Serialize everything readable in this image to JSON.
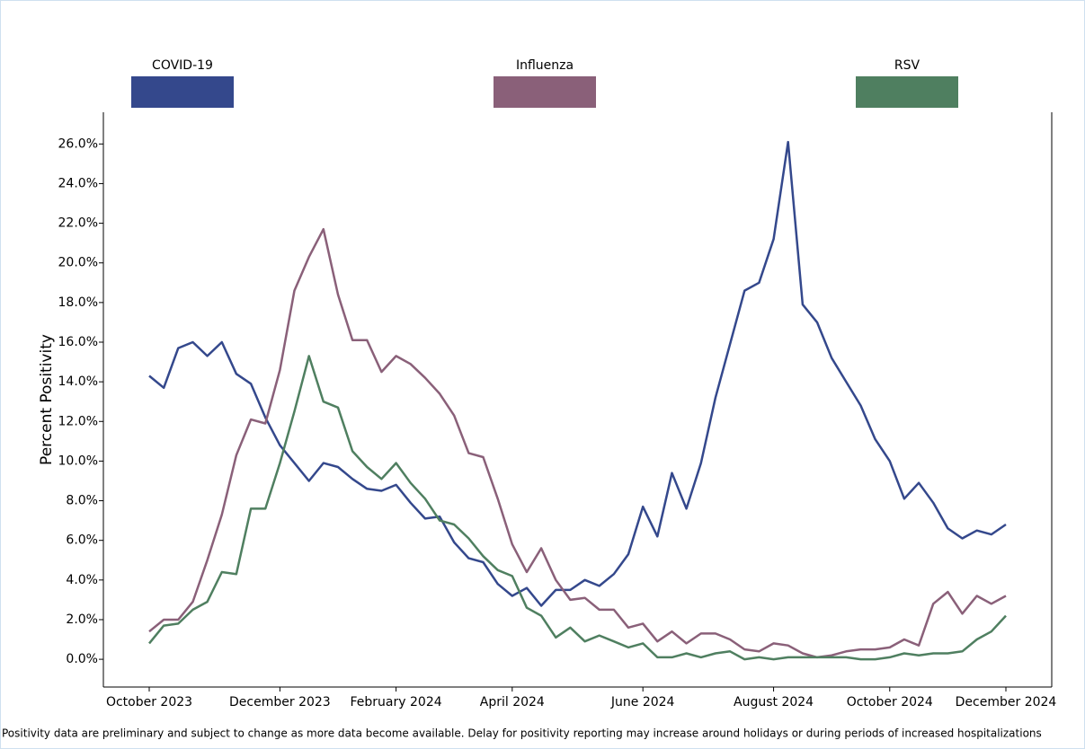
{
  "chart_data": {
    "type": "line",
    "y_label": "Percent Positivity",
    "footnote": "Positivity data are preliminary and subject to change as more data become available. Delay for positivity reporting may increase around holidays or during periods of increased hospitalizations",
    "legend": "top",
    "categories": [
      "October 2023",
      null,
      null,
      null,
      null,
      null,
      null,
      null,
      null,
      "December 2023",
      null,
      null,
      null,
      null,
      null,
      null,
      null,
      "February 2024",
      null,
      null,
      null,
      null,
      null,
      null,
      null,
      "April 2024",
      null,
      null,
      null,
      null,
      null,
      null,
      null,
      null,
      "June 2024",
      null,
      null,
      null,
      null,
      null,
      null,
      null,
      null,
      "August 2024",
      null,
      null,
      null,
      null,
      null,
      null,
      null,
      "October 2024",
      null,
      null,
      null,
      null,
      null,
      null,
      null,
      "December 2024"
    ],
    "series": [
      {
        "name": "COVID-19",
        "color": "#34488c",
        "values": [
          14.3,
          13.7,
          15.7,
          16.0,
          15.3,
          16.0,
          14.4,
          13.9,
          12.2,
          10.8,
          9.9,
          9.0,
          9.9,
          9.7,
          9.1,
          8.6,
          8.5,
          8.8,
          7.9,
          7.1,
          7.2,
          5.9,
          5.1,
          4.9,
          3.8,
          3.2,
          3.6,
          2.7,
          3.5,
          3.5,
          4.0,
          3.7,
          4.3,
          5.3,
          7.7,
          6.2,
          9.4,
          7.6,
          9.9,
          13.2,
          15.9,
          18.6,
          19.0,
          21.2,
          26.1,
          17.9,
          17.0,
          15.2,
          14.0,
          12.8,
          11.1,
          10.0,
          8.1,
          8.9,
          7.9,
          6.6,
          6.1,
          6.5,
          6.3,
          6.8
        ]
      },
      {
        "name": "Influenza",
        "color": "#8a6079",
        "values": [
          1.4,
          2.0,
          2.0,
          2.9,
          5.0,
          7.3,
          10.3,
          12.1,
          11.9,
          14.6,
          18.6,
          20.3,
          21.7,
          18.4,
          16.1,
          16.1,
          14.5,
          15.3,
          14.9,
          14.2,
          13.4,
          12.3,
          10.4,
          10.2,
          8.1,
          5.8,
          4.4,
          5.6,
          4.0,
          3.0,
          3.1,
          2.5,
          2.5,
          1.6,
          1.8,
          0.9,
          1.4,
          0.8,
          1.3,
          1.3,
          1.0,
          0.5,
          0.4,
          0.8,
          0.7,
          0.3,
          0.1,
          0.2,
          0.4,
          0.5,
          0.5,
          0.6,
          1.0,
          0.7,
          2.8,
          3.4,
          2.3,
          3.2,
          2.8,
          3.2
        ]
      },
      {
        "name": "RSV",
        "color": "#4f7f60",
        "values": [
          0.8,
          1.7,
          1.8,
          2.5,
          2.9,
          4.4,
          4.3,
          7.6,
          7.6,
          9.9,
          12.5,
          15.3,
          13.0,
          12.7,
          10.5,
          9.7,
          9.1,
          9.9,
          8.9,
          8.1,
          7.0,
          6.8,
          6.1,
          5.2,
          4.5,
          4.2,
          2.6,
          2.2,
          1.1,
          1.6,
          0.9,
          1.2,
          0.9,
          0.6,
          0.8,
          0.1,
          0.1,
          0.3,
          0.1,
          0.3,
          0.4,
          0.0,
          0.1,
          0.0,
          0.1,
          0.1,
          0.1,
          0.1,
          0.1,
          0.0,
          0.0,
          0.1,
          0.3,
          0.2,
          0.3,
          0.3,
          0.4,
          1.0,
          1.4,
          2.2
        ]
      }
    ],
    "ylim": [
      -1.4,
      27.6
    ],
    "yticks": [
      {
        "value": 0,
        "label": "0.0%"
      },
      {
        "value": 2,
        "label": "2.0%"
      },
      {
        "value": 4,
        "label": "4.0%"
      },
      {
        "value": 6,
        "label": "6.0%"
      },
      {
        "value": 8,
        "label": "8.0%"
      },
      {
        "value": 10,
        "label": "10.0%"
      },
      {
        "value": 12,
        "label": "12.0%"
      },
      {
        "value": 14,
        "label": "14.0%"
      },
      {
        "value": 16,
        "label": "16.0%"
      },
      {
        "value": 18,
        "label": "18.0%"
      },
      {
        "value": 20,
        "label": "20.0%"
      },
      {
        "value": 22,
        "label": "22.0%"
      },
      {
        "value": 24,
        "label": "24.0%"
      },
      {
        "value": 26,
        "label": "26.0%"
      }
    ],
    "grid": false
  }
}
